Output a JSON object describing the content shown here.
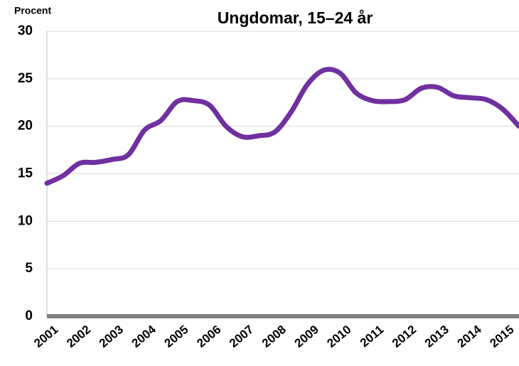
{
  "chart_data": {
    "type": "line",
    "title": "Ungdomar, 15–24 år",
    "y_label": "Procent",
    "categories": [
      "2001",
      null,
      "2002",
      null,
      "2003",
      null,
      "2004",
      null,
      "2005",
      null,
      "2006",
      null,
      "2007",
      null,
      "2008",
      null,
      "2009",
      null,
      "2010",
      null,
      "2011",
      null,
      "2012",
      null,
      "2013",
      null,
      "2014",
      null,
      "2015",
      null
    ],
    "series": [
      {
        "name": "Ungdomar, 15–24 år",
        "color": "#7030a0",
        "values": [
          14.0,
          14.8,
          16.1,
          16.2,
          16.5,
          17.0,
          19.6,
          20.6,
          22.6,
          22.7,
          22.2,
          20.0,
          18.9,
          19.0,
          19.4,
          21.5,
          24.4,
          25.9,
          25.6,
          23.5,
          22.7,
          22.6,
          22.8,
          24.0,
          24.1,
          23.2,
          23.0,
          22.8,
          21.8,
          20.0
        ]
      }
    ],
    "ylim": [
      0,
      30
    ],
    "yticks": [
      0,
      5,
      10,
      15,
      20,
      25,
      30
    ],
    "grid": true
  }
}
